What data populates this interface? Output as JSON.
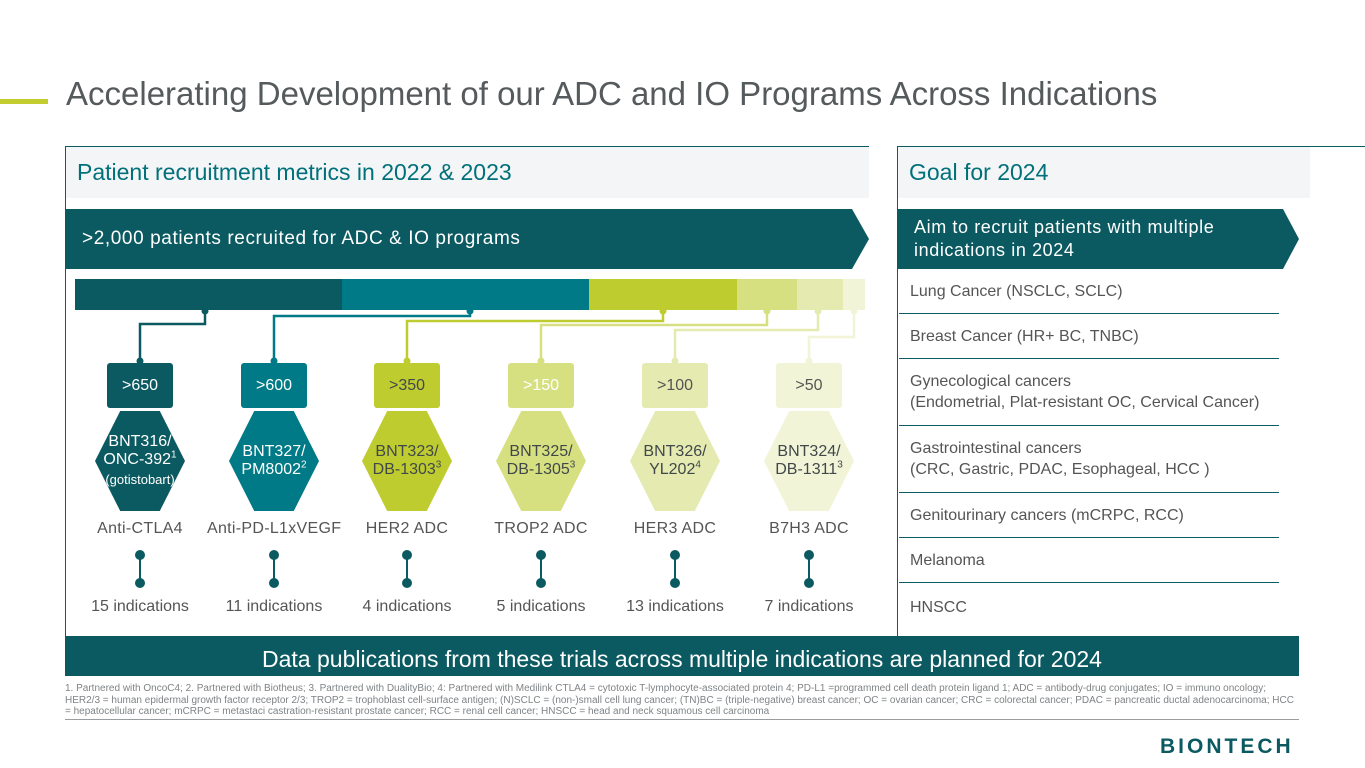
{
  "title": "Accelerating Development of our ADC and IO Programs Across Indications",
  "left_panel": {
    "heading": "Patient recruitment metrics in 2022 & 2023",
    "banner": ">2,000 patients recruited for ADC & IO programs",
    "programs": [
      {
        "count": ">650",
        "name1": "BNT316/",
        "name2": "ONC-392",
        "sup": "1",
        "extra": "(gotistobart)",
        "target": "Anti-CTLA4",
        "indications": "15 indications",
        "color": "#0b5a61",
        "text_color": "#ffffff"
      },
      {
        "count": ">600",
        "name1": "BNT327/",
        "name2": "PM8002",
        "sup": "2",
        "extra": "",
        "target": "Anti-PD-L1xVEGF",
        "indications": "11 indications",
        "color": "#007a86",
        "text_color": "#ffffff"
      },
      {
        "count": ">350",
        "name1": "BNT323/",
        "name2": "DB-1303",
        "sup": "3",
        "extra": "",
        "target": "HER2 ADC",
        "indications": "4 indications",
        "color": "#bfcc30",
        "text_color": "#41484a"
      },
      {
        "count": ">150",
        "name1": "BNT325/",
        "name2": "DB-1305",
        "sup": "3",
        "extra": "",
        "target": "TROP2 ADC",
        "indications": "5 indications",
        "color": "#d7e080",
        "text_color": "#41484a"
      },
      {
        "count": ">100",
        "name1": "BNT326/",
        "name2": "YL202",
        "sup": "4",
        "extra": "",
        "target": "HER3 ADC",
        "indications": "13 indications",
        "color": "#e4eab0",
        "text_color": "#41484a"
      },
      {
        "count": ">50",
        "name1": "BNT324/",
        "name2": "DB-1311",
        "sup": "3",
        "extra": "",
        "target": "B7H3 ADC",
        "indications": "7 indications",
        "color": "#f1f4d6",
        "text_color": "#41484a"
      }
    ]
  },
  "right_panel": {
    "heading": "Goal for 2024",
    "banner": "Aim to recruit patients with multiple indications in 2024",
    "items": [
      {
        "line1": "Lung Cancer (NSCLC, SCLC)",
        "line2": ""
      },
      {
        "line1": "Breast Cancer (HR+ BC, TNBC)",
        "line2": ""
      },
      {
        "line1": "Gynecological cancers",
        "line2": "(Endometrial, Plat-resistant OC, Cervical Cancer)"
      },
      {
        "line1": "Gastrointestinal cancers",
        "line2": "(CRC, Gastric, PDAC, Esophageal, HCC )"
      },
      {
        "line1": "Genitourinary cancers (mCRPC, RCC)",
        "line2": ""
      },
      {
        "line1": "Melanoma",
        "line2": ""
      },
      {
        "line1": "HNSCC",
        "line2": ""
      }
    ]
  },
  "bottom_banner": "Data publications from these trials across multiple indications are planned for 2024",
  "footnote": "1. Partnered with OncoC4; 2. Partnered with Biotheus; 3. Partnered with DualityBio; 4: Partnered with Medilink CTLA4 = cytotoxic T-lymphocyte-associated protein 4; PD-L1 =programmed cell death protein ligand 1; ADC = antibody-drug conjugates; IO = immuno oncology; HER2/3 = human epidermal growth factor receptor 2/3; TROP2 = trophoblast cell-surface antigen; (N)SCLC = (non-)small cell lung cancer; (TN)BC = (triple-negative) breast cancer; OC = ovarian cancer; CRC = colorectal cancer; PDAC = pancreatic ductal adenocarcinoma; HCC = hepatocellular cancer; mCRPC = metastaci castration-resistant prostate cancer; RCC = renal cell cancer; HNSCC = head and neck squamous cell carcinoma",
  "logo": "BIONTECH"
}
